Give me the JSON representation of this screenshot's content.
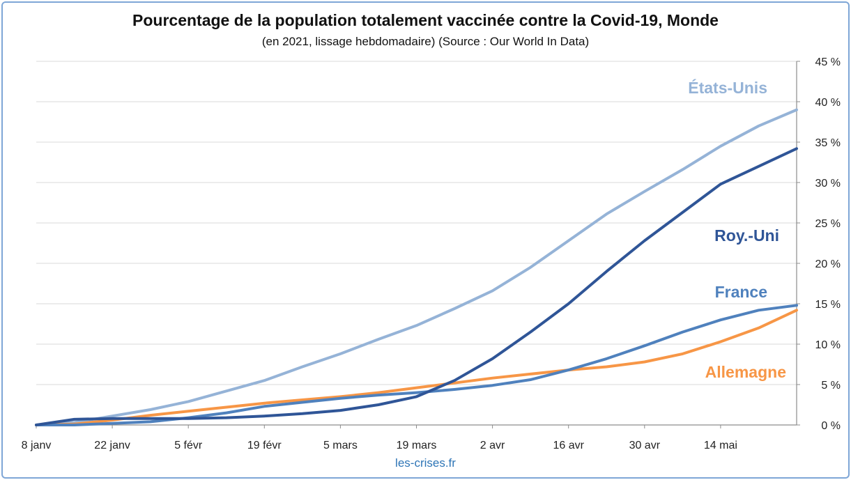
{
  "chart_data": {
    "type": "line",
    "title": "Pourcentage de la population totalement vaccinée contre la Covid-19, Monde",
    "subtitle": "(en 2021, lissage hebdomadaire) (Source : Our World In Data)",
    "source_note": "les-crises.fr",
    "xlabel": "",
    "ylabel": "",
    "x_ticks": [
      "8 janv",
      "22 janv",
      "5 févr",
      "19 févr",
      "5 mars",
      "19 mars",
      "2 avr",
      "16 avr",
      "30 avr",
      "14 mai"
    ],
    "y_ticks": [
      "0 %",
      "5 %",
      "10 %",
      "15 %",
      "20 %",
      "25 %",
      "30 %",
      "35 %",
      "40 %",
      "45 %"
    ],
    "ylim": [
      0,
      45
    ],
    "grid": true,
    "x_day_offsets": [
      0,
      7,
      14,
      21,
      28,
      35,
      42,
      49,
      56,
      63,
      70,
      77,
      84,
      91,
      98,
      105,
      112,
      119,
      126,
      133,
      140
    ],
    "series": [
      {
        "name": "États-Unis",
        "color": "#95b3d7",
        "values": [
          0.0,
          0.3,
          1.1,
          1.9,
          2.9,
          4.2,
          5.5,
          7.2,
          8.8,
          10.6,
          12.3,
          14.4,
          16.6,
          19.5,
          22.8,
          26.1,
          28.9,
          31.6,
          34.5,
          37.0,
          39.0
        ]
      },
      {
        "name": "Roy.-Uni",
        "color": "#2f5597",
        "values": [
          0.0,
          0.7,
          0.8,
          0.8,
          0.8,
          0.9,
          1.1,
          1.4,
          1.8,
          2.5,
          3.5,
          5.5,
          8.2,
          11.5,
          15.0,
          19.0,
          22.8,
          26.3,
          29.8,
          32.0,
          34.2
        ]
      },
      {
        "name": "France",
        "color": "#4f81bd",
        "values": [
          0.0,
          0.0,
          0.2,
          0.4,
          0.9,
          1.5,
          2.3,
          2.8,
          3.3,
          3.7,
          4.0,
          4.4,
          4.9,
          5.6,
          6.8,
          8.2,
          9.8,
          11.5,
          13.0,
          14.2,
          14.8
        ]
      },
      {
        "name": "Allemagne",
        "color": "#f79646",
        "values": [
          0.0,
          0.1,
          0.6,
          1.2,
          1.7,
          2.2,
          2.7,
          3.1,
          3.5,
          4.0,
          4.6,
          5.2,
          5.8,
          6.3,
          6.8,
          7.2,
          7.8,
          8.8,
          10.3,
          12.0,
          14.2
        ]
      }
    ]
  }
}
